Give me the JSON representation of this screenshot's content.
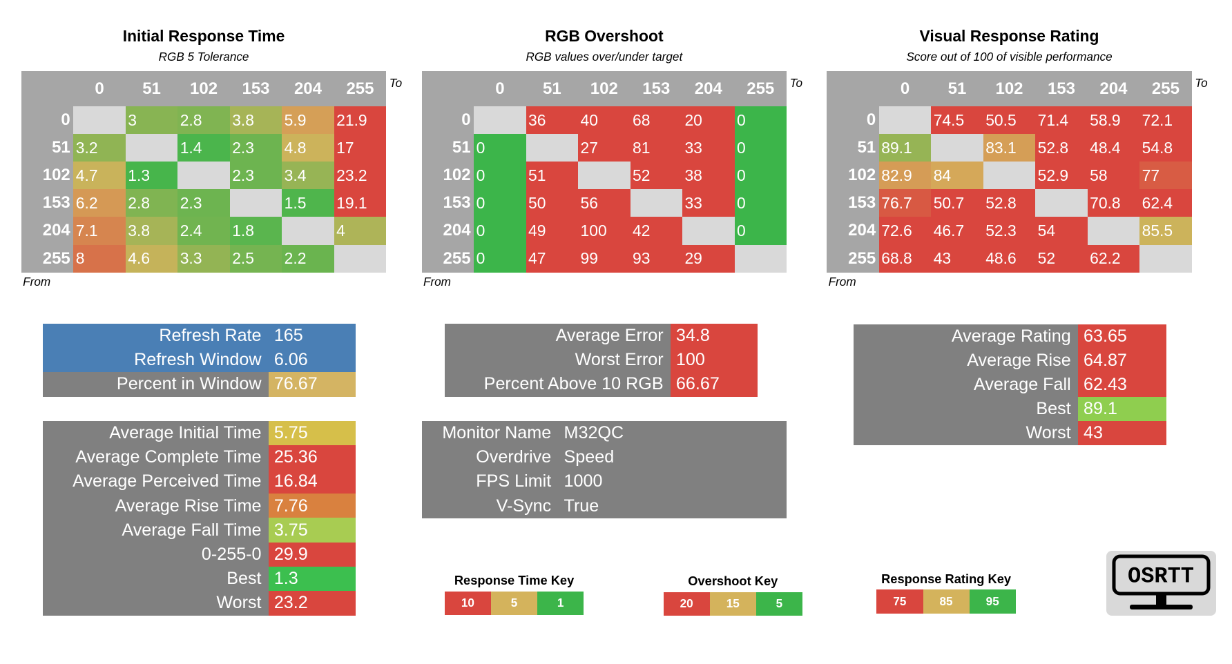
{
  "heatmaps": [
    {
      "title": "Initial Response Time",
      "subtitle": "RGB 5 Tolerance",
      "to_label": "To",
      "from_label": "From",
      "columns": [
        0,
        51,
        102,
        153,
        204,
        255
      ],
      "rows": [
        0,
        51,
        102,
        153,
        204,
        255
      ],
      "values": [
        [
          null,
          3,
          2.8,
          3.8,
          5.9,
          21.9
        ],
        [
          3.2,
          null,
          1.4,
          2.3,
          4.8,
          17
        ],
        [
          4.7,
          1.3,
          null,
          2.3,
          3.4,
          23.2
        ],
        [
          6.2,
          2.8,
          2.3,
          null,
          1.5,
          19.1
        ],
        [
          7.1,
          3.8,
          2.4,
          1.8,
          null,
          4
        ],
        [
          8,
          4.6,
          3.3,
          2.5,
          2.2,
          null
        ]
      ]
    },
    {
      "title": "RGB Overshoot",
      "subtitle": "RGB values over/under target",
      "to_label": "To",
      "from_label": "From",
      "columns": [
        0,
        51,
        102,
        153,
        204,
        255
      ],
      "rows": [
        0,
        51,
        102,
        153,
        204,
        255
      ],
      "values": [
        [
          null,
          36,
          40,
          68,
          20,
          0
        ],
        [
          0,
          null,
          27,
          81,
          33,
          0
        ],
        [
          0,
          51,
          null,
          52,
          38,
          0
        ],
        [
          0,
          50,
          56,
          null,
          33,
          0
        ],
        [
          0,
          49,
          100,
          42,
          null,
          0
        ],
        [
          0,
          47,
          99,
          93,
          29,
          null
        ]
      ]
    },
    {
      "title": "Visual Response Rating",
      "subtitle": "Score out of 100 of visible performance",
      "to_label": "To",
      "from_label": "From",
      "columns": [
        0,
        51,
        102,
        153,
        204,
        255
      ],
      "rows": [
        0,
        51,
        102,
        153,
        204,
        255
      ],
      "values": [
        [
          null,
          74.5,
          50.5,
          71.4,
          58.9,
          72.1
        ],
        [
          89.1,
          null,
          83.1,
          52.8,
          48.4,
          54.8
        ],
        [
          82.9,
          84,
          null,
          52.9,
          58,
          77
        ],
        [
          76.7,
          50.7,
          52.8,
          null,
          70.8,
          62.4
        ],
        [
          72.6,
          46.7,
          52.3,
          54,
          null,
          85.5
        ],
        [
          68.8,
          43,
          48.6,
          52,
          62.2,
          null
        ]
      ]
    }
  ],
  "stat_tables": [
    {
      "rows": [
        {
          "label": "Refresh Rate",
          "value": 165,
          "row_color": "#4a7fb5"
        },
        {
          "label": "Refresh Window",
          "value": 6.06,
          "row_color": "#4a7fb5"
        },
        {
          "label": "Percent in Window",
          "value": 76.67,
          "color": "#d4b463"
        }
      ]
    },
    {
      "rows": [
        {
          "label": "Average Initial Time",
          "value": 5.75,
          "color": "#d6bf4a"
        },
        {
          "label": "Average Complete Time",
          "value": 25.36,
          "color": "#d9463e"
        },
        {
          "label": "Average Perceived Time",
          "value": 16.84,
          "color": "#d9463e"
        },
        {
          "label": "Average Rise Time",
          "value": 7.76,
          "color": "#d9813f"
        },
        {
          "label": "Average Fall Time",
          "value": 3.75,
          "color": "#a8cc52"
        },
        {
          "label": "0-255-0",
          "value": 29.9,
          "color": "#d9463e"
        },
        {
          "label": "Best",
          "value": 1.3,
          "color": "#3cbf4f"
        },
        {
          "label": "Worst",
          "value": 23.2,
          "color": "#d9463e"
        }
      ]
    },
    {
      "rows": [
        {
          "label": "Average Error",
          "value": 34.8,
          "color": "#d9463e"
        },
        {
          "label": "Worst Error",
          "value": 100,
          "color": "#d9463e"
        },
        {
          "label": "Percent Above 10 RGB",
          "value": 66.67,
          "color": "#d9463e"
        }
      ]
    },
    {
      "rows": [
        {
          "label": "Monitor Name",
          "value": "M32QC"
        },
        {
          "label": "Overdrive",
          "value": "Speed"
        },
        {
          "label": "FPS Limit",
          "value": 1000
        },
        {
          "label": "V-Sync",
          "value": "True"
        }
      ]
    },
    {
      "rows": [
        {
          "label": "Average Rating",
          "value": 63.65,
          "color": "#d9463e"
        },
        {
          "label": "Average Rise",
          "value": 64.87,
          "color": "#d9463e"
        },
        {
          "label": "Average Fall",
          "value": 62.43,
          "color": "#d9463e"
        },
        {
          "label": "Best",
          "value": 89.1,
          "color": "#8fce4f"
        },
        {
          "label": "Worst",
          "value": 43,
          "color": "#d9463e"
        }
      ]
    }
  ],
  "keys": [
    {
      "title": "Response Time Key",
      "items": [
        {
          "value": 10,
          "color": "#d9463e"
        },
        {
          "value": 5,
          "color": "#d4b35c"
        },
        {
          "value": 1,
          "color": "#3cb54a"
        }
      ]
    },
    {
      "title": "Overshoot Key",
      "items": [
        {
          "value": 20,
          "color": "#d9463e"
        },
        {
          "value": 15,
          "color": "#d4b35c"
        },
        {
          "value": 5,
          "color": "#3cb54a"
        }
      ]
    },
    {
      "title": "Response Rating Key",
      "items": [
        {
          "value": 75,
          "color": "#d9463e"
        },
        {
          "value": 85,
          "color": "#d4b35c"
        },
        {
          "value": 95,
          "color": "#3cb54a"
        }
      ]
    }
  ],
  "logo": {
    "text": "OSRTT"
  }
}
